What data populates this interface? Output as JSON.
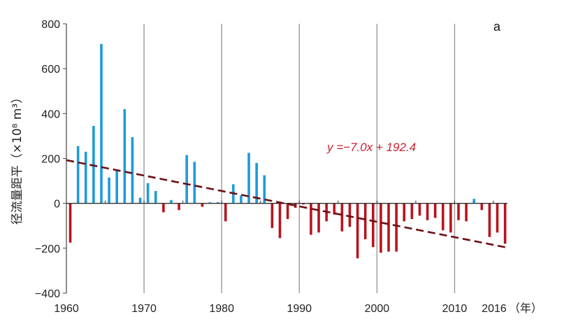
{
  "chart_data": {
    "type": "bar",
    "panel_label": "a",
    "ylabel": "径流量距平（×10⁸ m³）",
    "x_unit": "（年）",
    "ylim": [
      -400,
      800
    ],
    "yticks": [
      -400,
      -200,
      0,
      200,
      400,
      600,
      800
    ],
    "x_tick_labels": [
      {
        "year": 1960,
        "label": "1960"
      },
      {
        "year": 1970,
        "label": "1970"
      },
      {
        "year": 1980,
        "label": "1980"
      },
      {
        "year": 1990,
        "label": "1990"
      },
      {
        "year": 2000,
        "label": "2000"
      },
      {
        "year": 2010,
        "label": "2010"
      },
      {
        "year": 2016,
        "label": "2016"
      }
    ],
    "vertical_gridlines": [
      1970,
      1980,
      1990,
      2000,
      2010
    ],
    "years": [
      1960,
      1961,
      1962,
      1963,
      1964,
      1965,
      1966,
      1967,
      1968,
      1969,
      1970,
      1971,
      1972,
      1973,
      1974,
      1975,
      1976,
      1977,
      1978,
      1979,
      1980,
      1981,
      1982,
      1983,
      1984,
      1985,
      1986,
      1987,
      1988,
      1989,
      1990,
      1991,
      1992,
      1993,
      1994,
      1995,
      1996,
      1997,
      1998,
      1999,
      2000,
      2001,
      2002,
      2003,
      2004,
      2005,
      2006,
      2007,
      2008,
      2009,
      2010,
      2011,
      2012,
      2013,
      2014,
      2015,
      2016
    ],
    "values": [
      -175,
      255,
      230,
      345,
      710,
      115,
      145,
      420,
      295,
      25,
      90,
      55,
      -40,
      15,
      -30,
      215,
      185,
      -15,
      5,
      5,
      -80,
      85,
      35,
      225,
      180,
      125,
      -110,
      -155,
      -70,
      -20,
      -5,
      -140,
      -130,
      -80,
      -50,
      -125,
      -105,
      -245,
      -160,
      -195,
      -220,
      -215,
      -215,
      -80,
      -70,
      -55,
      -75,
      -65,
      -120,
      -130,
      -75,
      -80,
      20,
      -30,
      -150,
      -130,
      -180
    ],
    "positive_color": "#1c9bdb",
    "negative_color": "#b8141e",
    "trend": {
      "equation": "y =−7.0x + 192.4",
      "start": [
        1960,
        192.4
      ],
      "end": [
        2016,
        -196
      ],
      "color": "#6b0e12",
      "style": "dashed"
    },
    "grid": "vertical-only"
  }
}
